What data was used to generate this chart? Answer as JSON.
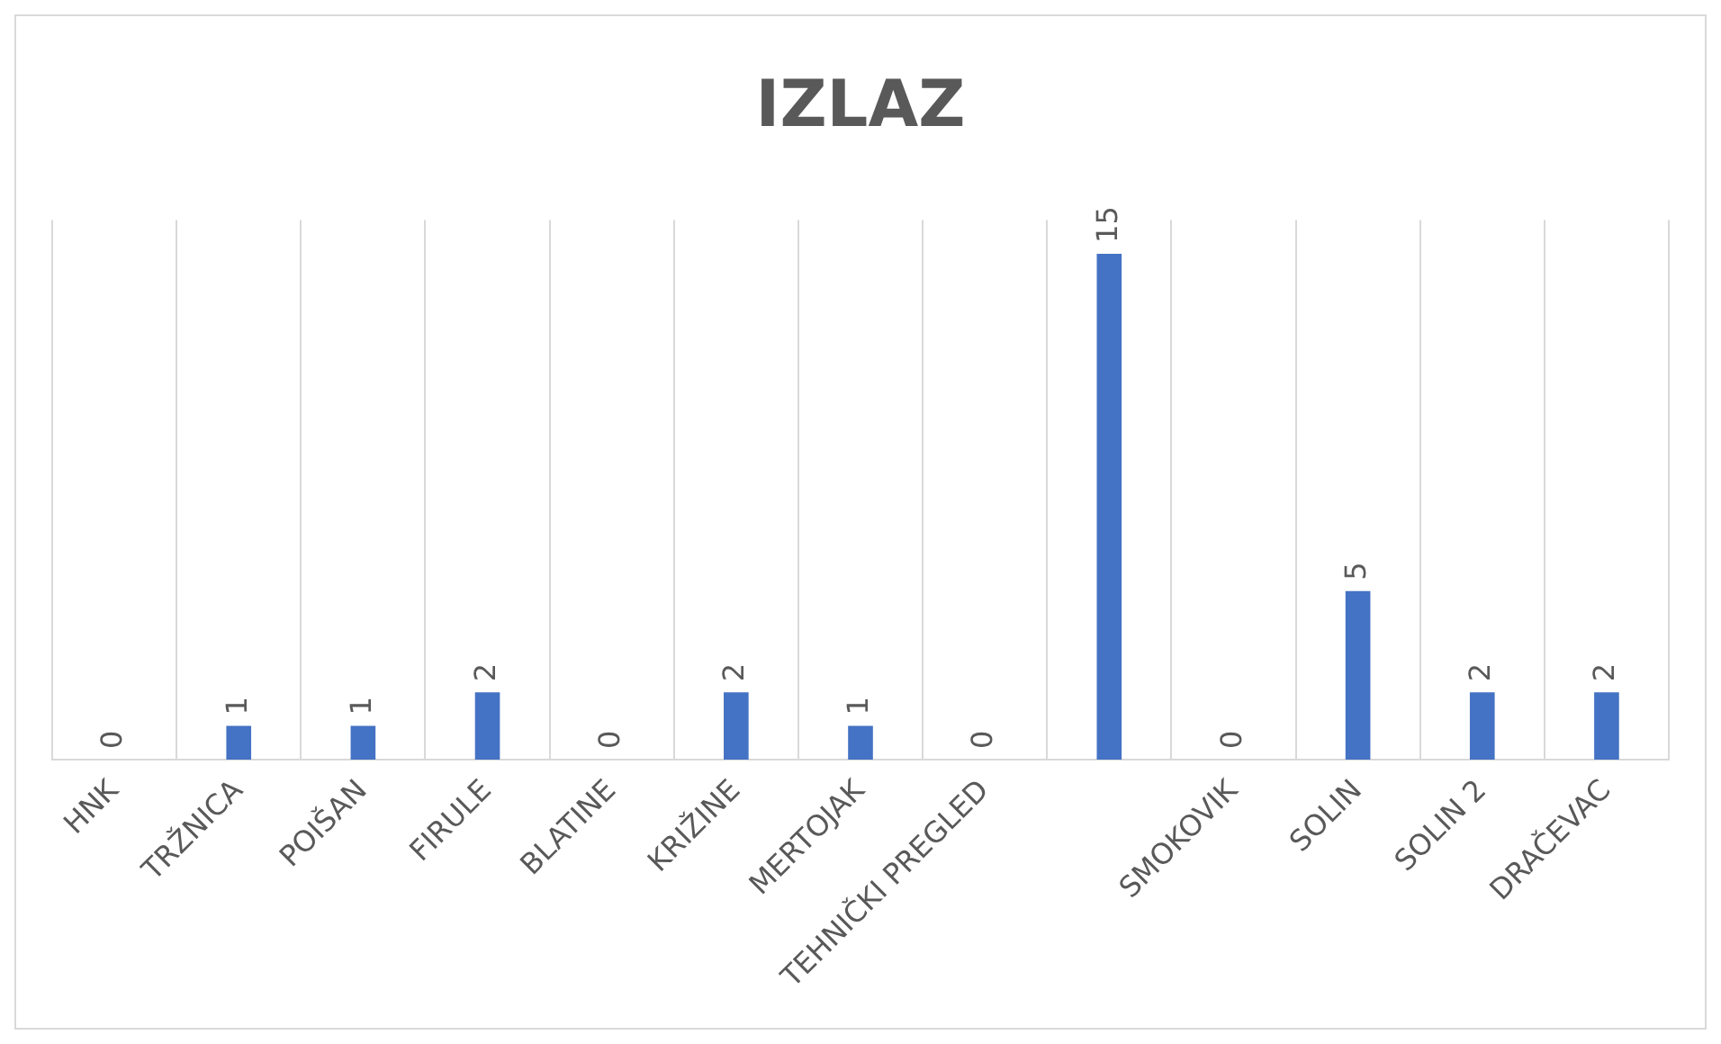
{
  "chart_data": {
    "type": "bar",
    "title": "IZLAZ",
    "categories": [
      "HNK",
      "TRŽNICA",
      "POIŠAN",
      "FIRULE",
      "BLATINE",
      "KRIŽINE",
      "MERTOJAK",
      "TEHNIČKI PREGLED",
      null,
      "SMOKOVIK",
      "SOLIN",
      "SOLIN 2",
      "DRAČEVAC"
    ],
    "values": [
      0,
      1,
      1,
      2,
      0,
      2,
      1,
      0,
      15,
      0,
      5,
      2,
      2
    ],
    "color": "#4472c4",
    "data_labels": true,
    "grid": "x",
    "legend": false
  }
}
